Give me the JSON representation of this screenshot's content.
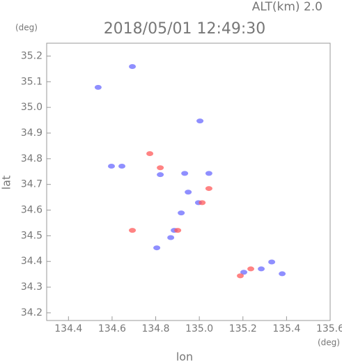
{
  "chart_data": {
    "type": "scatter",
    "title": "2018/05/01 12:49:30",
    "altitude_label": "ALT(km) 2.0",
    "y_unit": "(deg)",
    "x_unit": "(deg)",
    "xlabel": "lon",
    "ylabel": "lat",
    "xlim": [
      134.3,
      135.6
    ],
    "ylim": [
      34.17,
      35.25
    ],
    "xticks": [
      134.4,
      134.6,
      134.8,
      {
        "value": 135,
        "label": "135.0"
      },
      135.2,
      135.4,
      135.6
    ],
    "yticks": [
      34.2,
      34.3,
      34.4,
      34.5,
      34.6,
      34.7,
      34.8,
      34.9,
      {
        "value": 35,
        "label": "35.0"
      },
      35.1,
      35.2
    ],
    "series": [
      {
        "color": "#6a6aff",
        "x": [
          134.536,
          134.693,
          135.003,
          134.597,
          134.645,
          134.821,
          134.933,
          135.044,
          134.949,
          134.996,
          134.917,
          134.885,
          134.869,
          134.805,
          135.284,
          135.332,
          135.38,
          135.204
        ],
        "values": [
          35.078,
          35.159,
          34.947,
          34.771,
          34.771,
          34.738,
          34.743,
          34.743,
          34.67,
          34.629,
          34.589,
          34.521,
          34.493,
          34.453,
          34.371,
          34.398,
          34.352,
          34.358
        ]
      },
      {
        "color": "#ff5a5a",
        "x": [
          134.773,
          134.821,
          135.044,
          135.013,
          134.901,
          135.188,
          135.236,
          134.693
        ],
        "values": [
          34.82,
          34.765,
          34.684,
          34.629,
          34.521,
          34.344,
          34.371,
          34.521
        ]
      }
    ]
  }
}
